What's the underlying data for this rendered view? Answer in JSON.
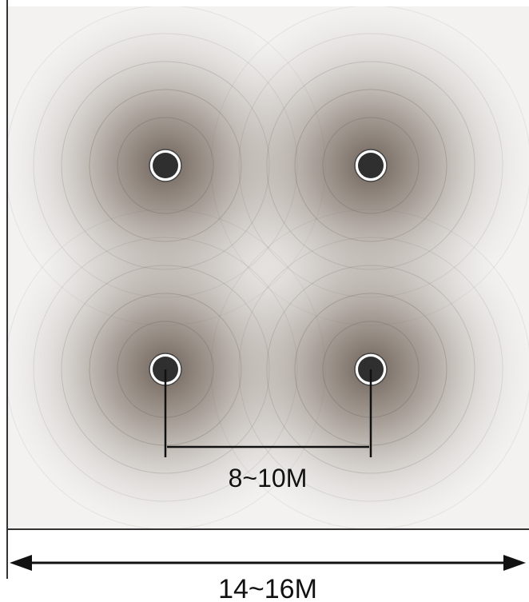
{
  "diagram": {
    "device_count": 4,
    "spacing_label": "8~10M",
    "room_width_label": "14~16M"
  },
  "colors": {
    "border": "#333333",
    "coverage_core": "#6b5e52",
    "coverage_ring": "#8a7f75",
    "device_fill": "#2f2f2f",
    "device_ring": "#ffffff",
    "dimension_line": "#111111"
  }
}
